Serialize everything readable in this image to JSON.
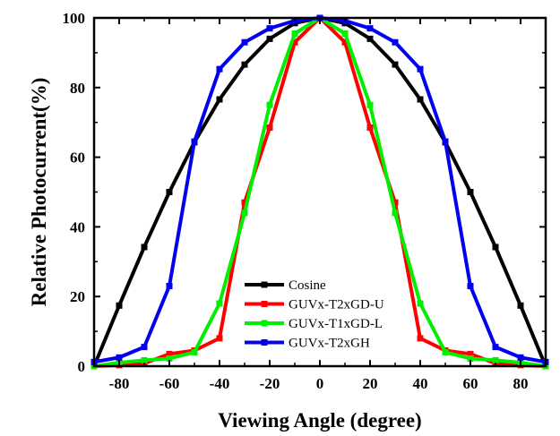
{
  "chart_data": {
    "type": "line",
    "xlabel": "Viewing Angle (degree)",
    "ylabel": "Relative Photocurrent(%)",
    "xlim": [
      -90,
      90
    ],
    "ylim": [
      0,
      100
    ],
    "xticks": [
      -80,
      -60,
      -40,
      -20,
      0,
      20,
      40,
      60,
      80
    ],
    "yticks": [
      0,
      20,
      40,
      60,
      80,
      100
    ],
    "grid": false,
    "legend_position": "lower-center",
    "x": [
      -90,
      -80,
      -70,
      -60,
      -50,
      -40,
      -30,
      -20,
      -10,
      0,
      10,
      20,
      30,
      40,
      50,
      60,
      70,
      80,
      90
    ],
    "series": [
      {
        "name": "Cosine",
        "color": "#000000",
        "marker": "square",
        "values": [
          0,
          17.4,
          34.2,
          50.0,
          64.3,
          76.6,
          86.6,
          94.0,
          98.5,
          100,
          98.5,
          94.0,
          86.6,
          76.6,
          64.3,
          50.0,
          34.2,
          17.4,
          0
        ]
      },
      {
        "name": "GUVx-T2xGD-U",
        "color": "#ff0000",
        "marker": "square",
        "values": [
          0,
          0.3,
          0.8,
          3.5,
          4.5,
          8.0,
          47.0,
          68.5,
          93.0,
          100,
          93.0,
          68.5,
          47.0,
          8.0,
          4.5,
          3.5,
          0.8,
          0.3,
          0
        ]
      },
      {
        "name": "GUVx-T1xGD-L",
        "color": "#00ee00",
        "marker": "square",
        "values": [
          0,
          1.0,
          1.7,
          2.2,
          4.0,
          18.0,
          44.0,
          75.0,
          95.5,
          100,
          95.5,
          75.0,
          44.0,
          18.0,
          4.0,
          2.2,
          1.7,
          1.0,
          0
        ]
      },
      {
        "name": "GUVx-T2xGH",
        "color": "#0000ee",
        "marker": "square",
        "values": [
          1.2,
          2.5,
          5.5,
          23.0,
          64.5,
          85.3,
          93.0,
          97.0,
          99.2,
          100,
          99.2,
          97.0,
          93.0,
          85.3,
          64.5,
          23.0,
          5.5,
          2.5,
          1.2
        ]
      }
    ]
  }
}
